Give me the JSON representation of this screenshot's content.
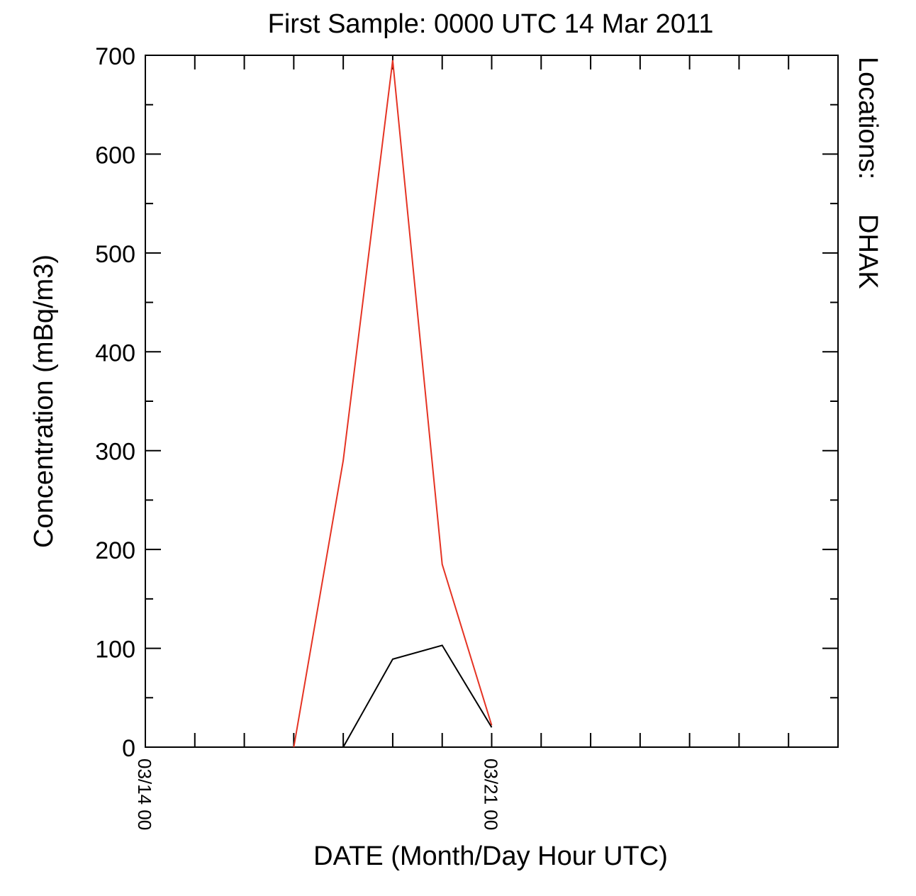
{
  "chart_data": {
    "type": "line",
    "title": "First Sample: 0000 UTC 14 Mar 2011",
    "xlabel": "DATE (Month/Day Hour UTC)",
    "ylabel": "Concentration (mBq/m3)",
    "xlim": [
      0,
      14
    ],
    "ylim": [
      0,
      700
    ],
    "x_ticks": [
      {
        "x": 0,
        "label": "03/14 00"
      },
      {
        "x": 7,
        "label": "03/21 00"
      }
    ],
    "y_ticks": [
      0,
      100,
      200,
      300,
      400,
      500,
      600,
      700
    ],
    "legend": {
      "label": "Locations:",
      "entries": [
        {
          "name": "DHAK",
          "color": "#e53323"
        }
      ],
      "placement": "right"
    },
    "series": [
      {
        "name": "DHAK",
        "color": "#e53323",
        "points": [
          [
            3,
            0
          ],
          [
            4,
            290
          ],
          [
            5,
            695
          ],
          [
            6,
            185
          ],
          [
            7,
            22
          ]
        ]
      },
      {
        "color": "#000000",
        "points": [
          [
            4,
            0
          ],
          [
            5,
            89
          ],
          [
            6,
            103
          ],
          [
            7,
            20
          ]
        ]
      }
    ],
    "grid": false
  }
}
